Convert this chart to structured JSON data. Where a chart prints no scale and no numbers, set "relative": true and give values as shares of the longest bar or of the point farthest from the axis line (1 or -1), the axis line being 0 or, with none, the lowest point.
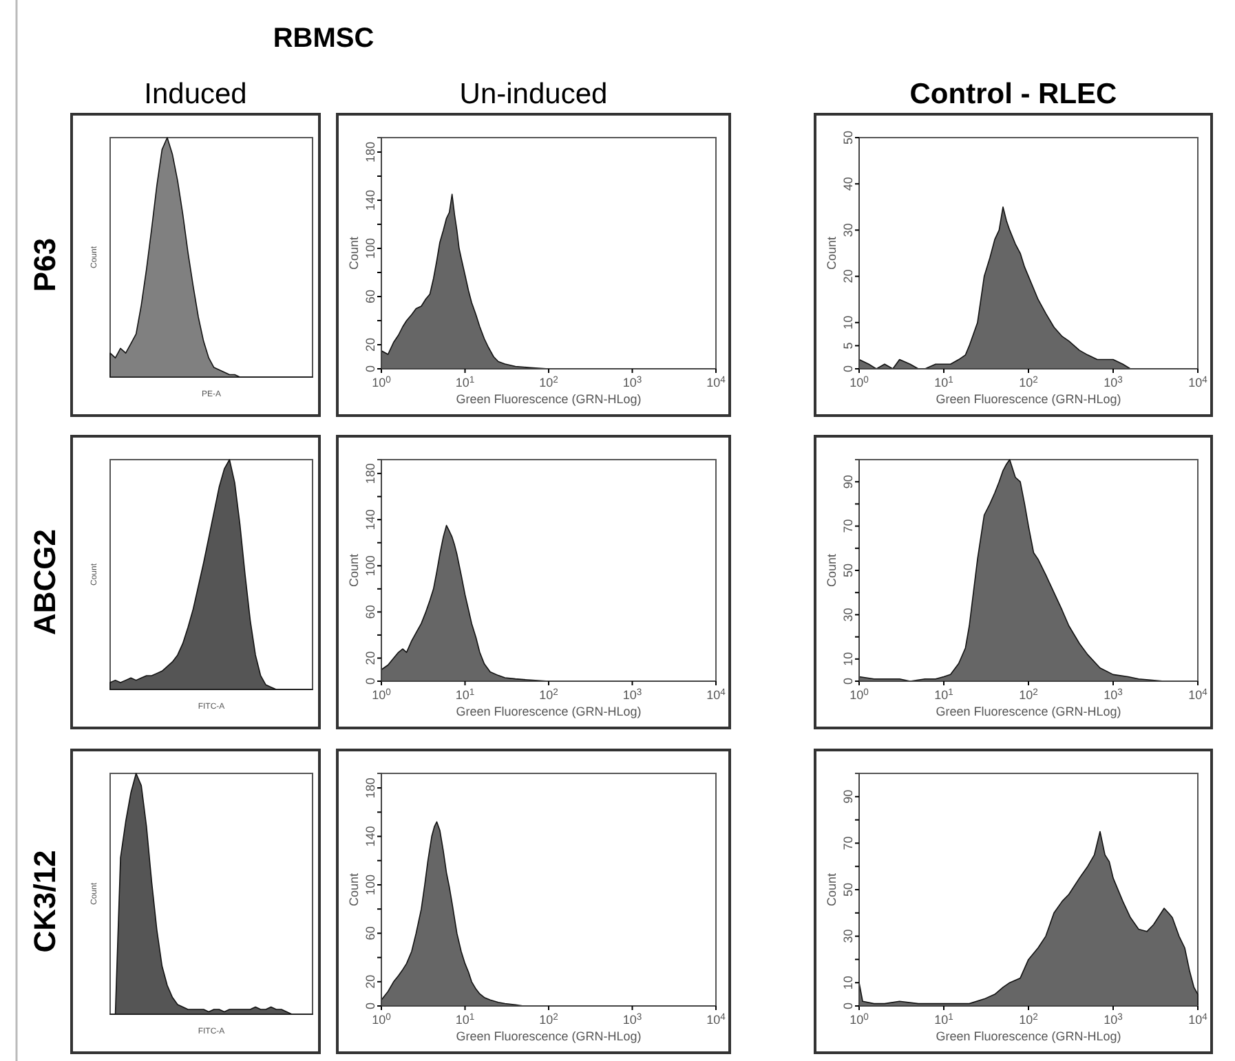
{
  "chart_data": [
    {
      "type": "area",
      "title": "Induced",
      "annotations": [
        "P63",
        "RBMSC"
      ],
      "relative": true,
      "xlabel": "PE-A",
      "ylabel": "Count",
      "color": "#808080",
      "categories": [
        null,
        null,
        null,
        null,
        null,
        null,
        null,
        null,
        null,
        null,
        null,
        null,
        null,
        null,
        null,
        null,
        null,
        null,
        null,
        null,
        null,
        null,
        null,
        null,
        null,
        null,
        null,
        null,
        null,
        null,
        null,
        null,
        null,
        null,
        null,
        null,
        null,
        null,
        null,
        null
      ],
      "values": [
        0.1,
        0.08,
        0.12,
        0.1,
        0.14,
        0.18,
        0.3,
        0.45,
        0.62,
        0.8,
        0.95,
        1,
        0.93,
        0.82,
        0.68,
        0.52,
        0.38,
        0.25,
        0.15,
        0.08,
        0.04,
        0.03,
        0.02,
        0.01,
        0.01,
        0,
        0,
        0,
        0,
        0,
        0,
        0,
        0,
        0,
        0,
        0,
        0,
        0,
        0,
        0
      ]
    },
    {
      "type": "area",
      "title": "Un-induced",
      "xlabel": "Green Fluorescence (GRN-HLog)",
      "ylabel": "Count",
      "color": "#666666",
      "log": "x",
      "xlim": [
        1,
        10000
      ],
      "xticks": [
        {
          "value": 1,
          "label": "10$^{0}$"
        },
        {
          "value": 10,
          "label": "10$^{1}$"
        },
        {
          "value": 100,
          "label": "10$^{2}$"
        },
        {
          "value": 1000,
          "label": "10$^{3}$"
        },
        {
          "value": 10000,
          "label": "10$^{4}$"
        }
      ],
      "ylim": [
        0,
        192
      ],
      "yticks": [
        0,
        20,
        {
          "value": 40,
          "label": null
        },
        60,
        {
          "value": 80,
          "label": null
        },
        100,
        {
          "value": 120,
          "label": null
        },
        140,
        {
          "value": 160,
          "label": null
        },
        180
      ],
      "x": [
        1,
        1.2,
        1.4,
        1.6,
        1.8,
        2,
        2.3,
        2.6,
        3,
        3.4,
        3.8,
        4.2,
        4.6,
        5,
        5.5,
        6,
        6.5,
        7,
        7.5,
        8,
        8.5,
        9,
        10,
        11,
        12,
        13.5,
        15,
        17,
        19,
        22,
        25,
        30,
        40,
        60,
        100,
        1000,
        10000
      ],
      "values": [
        15,
        12,
        22,
        28,
        35,
        40,
        45,
        50,
        52,
        58,
        62,
        75,
        90,
        105,
        115,
        125,
        130,
        145,
        128,
        115,
        100,
        92,
        78,
        65,
        55,
        45,
        35,
        25,
        18,
        10,
        6,
        4,
        2,
        1,
        0,
        0,
        0
      ]
    },
    {
      "type": "area",
      "title": "Control - RLEC",
      "xlabel": "Green Fluorescence (GRN-HLog)",
      "ylabel": "Count",
      "color": "#666666",
      "log": "x",
      "xlim": [
        1,
        10000
      ],
      "xticks": [
        {
          "value": 1,
          "label": "10$^{0}$"
        },
        {
          "value": 10,
          "label": "10$^{1}$"
        },
        {
          "value": 100,
          "label": "10$^{2}$"
        },
        {
          "value": 1000,
          "label": "10$^{3}$"
        },
        {
          "value": 10000,
          "label": "10$^{4}$"
        }
      ],
      "ylim": [
        0,
        50
      ],
      "yticks": [
        0,
        5,
        10,
        20,
        30,
        40,
        50
      ],
      "x": [
        1,
        1.3,
        1.6,
        2,
        2.5,
        3,
        4,
        5,
        6,
        8,
        10,
        12,
        15,
        18,
        20,
        25,
        30,
        35,
        40,
        45,
        50,
        55,
        60,
        70,
        80,
        90,
        100,
        130,
        160,
        200,
        250,
        300,
        400,
        500,
        650,
        800,
        1000,
        1300,
        1600,
        3000,
        10000
      ],
      "values": [
        2,
        1,
        0,
        1,
        0,
        2,
        1,
        0,
        0,
        1,
        1,
        1,
        2,
        3,
        5,
        10,
        20,
        24,
        28,
        30,
        35,
        32,
        30,
        27,
        25,
        22,
        20,
        15,
        12,
        9,
        7,
        6,
        4,
        3,
        2,
        2,
        2,
        1,
        0,
        0,
        0
      ]
    },
    {
      "type": "area",
      "annotations": [
        "ABCG2"
      ],
      "relative": true,
      "xlabel": "FITC-A",
      "ylabel": "Count",
      "color": "#555555",
      "categories": [
        null,
        null,
        null,
        null,
        null,
        null,
        null,
        null,
        null,
        null,
        null,
        null,
        null,
        null,
        null,
        null,
        null,
        null,
        null,
        null,
        null,
        null,
        null,
        null,
        null,
        null,
        null,
        null,
        null,
        null,
        null,
        null,
        null,
        null,
        null,
        null,
        null,
        null,
        null,
        null
      ],
      "values": [
        0.03,
        0.04,
        0.03,
        0.04,
        0.05,
        0.04,
        0.05,
        0.06,
        0.06,
        0.07,
        0.08,
        0.1,
        0.12,
        0.15,
        0.2,
        0.27,
        0.35,
        0.45,
        0.55,
        0.66,
        0.77,
        0.88,
        0.96,
        1,
        0.9,
        0.72,
        0.5,
        0.3,
        0.15,
        0.06,
        0.02,
        0.01,
        0,
        0,
        0,
        0,
        0,
        0,
        0,
        0
      ]
    },
    {
      "type": "area",
      "xlabel": "Green Fluorescence (GRN-HLog)",
      "ylabel": "Count",
      "color": "#666666",
      "log": "x",
      "xlim": [
        1,
        10000
      ],
      "xticks": [
        {
          "value": 1,
          "label": "10$^{0}$"
        },
        {
          "value": 10,
          "label": "10$^{1}$"
        },
        {
          "value": 100,
          "label": "10$^{2}$"
        },
        {
          "value": 1000,
          "label": "10$^{3}$"
        },
        {
          "value": 10000,
          "label": "10$^{4}$"
        }
      ],
      "ylim": [
        0,
        192
      ],
      "yticks": [
        0,
        20,
        {
          "value": 40,
          "label": null
        },
        60,
        {
          "value": 80,
          "label": null
        },
        100,
        {
          "value": 120,
          "label": null
        },
        140,
        {
          "value": 160,
          "label": null
        },
        180
      ],
      "x": [
        1,
        1.2,
        1.4,
        1.6,
        1.8,
        2,
        2.3,
        2.6,
        3,
        3.4,
        3.8,
        4.2,
        4.6,
        5,
        5.5,
        6,
        6.5,
        7,
        7.5,
        8,
        9,
        10,
        11,
        12,
        13.5,
        15,
        17,
        20,
        25,
        30,
        40,
        60,
        100,
        1000,
        10000
      ],
      "values": [
        10,
        14,
        20,
        25,
        28,
        25,
        35,
        42,
        50,
        60,
        70,
        80,
        95,
        110,
        125,
        135,
        130,
        125,
        118,
        110,
        92,
        75,
        62,
        50,
        38,
        25,
        15,
        8,
        5,
        3,
        2,
        1,
        0,
        0,
        0
      ]
    },
    {
      "type": "area",
      "xlabel": "Green Fluorescence (GRN-HLog)",
      "ylabel": "Count",
      "color": "#666666",
      "log": "x",
      "xlim": [
        1,
        10000
      ],
      "xticks": [
        {
          "value": 1,
          "label": "10$^{0}$"
        },
        {
          "value": 10,
          "label": "10$^{1}$"
        },
        {
          "value": 100,
          "label": "10$^{2}$"
        },
        {
          "value": 1000,
          "label": "10$^{3}$"
        },
        {
          "value": 10000,
          "label": "10$^{4}$"
        }
      ],
      "ylim": [
        0,
        100
      ],
      "yticks": [
        0,
        10,
        {
          "value": 20,
          "label": null
        },
        30,
        {
          "value": 40,
          "label": null
        },
        50,
        {
          "value": 60,
          "label": null
        },
        70,
        {
          "value": 80,
          "label": null
        },
        90
      ],
      "x": [
        1,
        1.5,
        2,
        3,
        4,
        6,
        8,
        10,
        12,
        15,
        18,
        20,
        25,
        30,
        35,
        40,
        45,
        50,
        55,
        60,
        70,
        80,
        90,
        100,
        115,
        130,
        160,
        200,
        250,
        300,
        400,
        500,
        700,
        1000,
        1500,
        2000,
        4000,
        10000
      ],
      "values": [
        2,
        1,
        1,
        1,
        0,
        1,
        1,
        2,
        3,
        8,
        15,
        25,
        55,
        75,
        80,
        85,
        90,
        95,
        98,
        100,
        92,
        90,
        80,
        70,
        58,
        55,
        48,
        40,
        32,
        25,
        17,
        12,
        6,
        3,
        2,
        1,
        0,
        0
      ]
    },
    {
      "type": "area",
      "annotations": [
        "CK3/12"
      ],
      "relative": true,
      "xlabel": "FITC-A",
      "ylabel": "Count",
      "color": "#555555",
      "categories": [
        null,
        null,
        null,
        null,
        null,
        null,
        null,
        null,
        null,
        null,
        null,
        null,
        null,
        null,
        null,
        null,
        null,
        null,
        null,
        null,
        null,
        null,
        null,
        null,
        null,
        null,
        null,
        null,
        null,
        null,
        null,
        null,
        null,
        null,
        null,
        null,
        null,
        null,
        null,
        null
      ],
      "values": [
        0,
        0,
        0.65,
        0.8,
        0.92,
        1,
        0.95,
        0.78,
        0.55,
        0.35,
        0.2,
        0.12,
        0.07,
        0.04,
        0.03,
        0.02,
        0.02,
        0.02,
        0.02,
        0.01,
        0.02,
        0.02,
        0.01,
        0.02,
        0.02,
        0.02,
        0.02,
        0.02,
        0.03,
        0.02,
        0.02,
        0.03,
        0.02,
        0.02,
        0.01,
        0,
        0,
        0,
        0,
        0
      ]
    },
    {
      "type": "area",
      "xlabel": "Green Fluorescence (GRN-HLog)",
      "ylabel": "Count",
      "color": "#666666",
      "log": "x",
      "xlim": [
        1,
        10000
      ],
      "xticks": [
        {
          "value": 1,
          "label": "10$^{0}$"
        },
        {
          "value": 10,
          "label": "10$^{1}$"
        },
        {
          "value": 100,
          "label": "10$^{2}$"
        },
        {
          "value": 1000,
          "label": "10$^{3}$"
        },
        {
          "value": 10000,
          "label": "10$^{4}$"
        }
      ],
      "ylim": [
        0,
        192
      ],
      "yticks": [
        0,
        20,
        {
          "value": 40,
          "label": null
        },
        60,
        {
          "value": 80,
          "label": null
        },
        100,
        {
          "value": 120,
          "label": null
        },
        140,
        {
          "value": 160,
          "label": null
        },
        180
      ],
      "x": [
        1,
        1.2,
        1.4,
        1.6,
        1.8,
        2,
        2.3,
        2.6,
        3,
        3.3,
        3.6,
        4,
        4.3,
        4.6,
        5,
        5.5,
        6,
        6.5,
        7,
        8,
        9,
        10,
        11,
        12,
        13.5,
        15,
        17,
        20,
        25,
        30,
        40,
        50,
        100,
        1000,
        10000
      ],
      "values": [
        5,
        12,
        20,
        25,
        30,
        35,
        45,
        60,
        80,
        100,
        120,
        140,
        148,
        152,
        145,
        128,
        110,
        98,
        85,
        60,
        45,
        35,
        28,
        20,
        14,
        10,
        7,
        5,
        3,
        2,
        1,
        0,
        0,
        0,
        0
      ]
    },
    {
      "type": "area",
      "xlabel": "Green Fluorescence (GRN-HLog)",
      "ylabel": "Count",
      "color": "#666666",
      "log": "x",
      "xlim": [
        1,
        10000
      ],
      "xticks": [
        {
          "value": 1,
          "label": "10$^{0}$"
        },
        {
          "value": 10,
          "label": "10$^{1}$"
        },
        {
          "value": 100,
          "label": "10$^{2}$"
        },
        {
          "value": 1000,
          "label": "10$^{3}$"
        },
        {
          "value": 10000,
          "label": "10$^{4}$"
        }
      ],
      "ylim": [
        0,
        100
      ],
      "yticks": [
        0,
        10,
        {
          "value": 20,
          "label": null
        },
        30,
        {
          "value": 40,
          "label": null
        },
        50,
        {
          "value": 60,
          "label": null
        },
        70,
        {
          "value": 80,
          "label": null
        },
        90
      ],
      "x": [
        1,
        1.1,
        1.5,
        2,
        3,
        5,
        8,
        12,
        20,
        30,
        40,
        50,
        60,
        80,
        100,
        130,
        160,
        200,
        250,
        300,
        400,
        500,
        600,
        700,
        800,
        900,
        1000,
        1300,
        1600,
        2000,
        2500,
        3000,
        4000,
        4500,
        5000,
        6000,
        7000,
        8000,
        9000,
        10000
      ],
      "values": [
        10,
        2,
        1,
        1,
        2,
        1,
        1,
        1,
        1,
        3,
        5,
        8,
        10,
        12,
        20,
        25,
        30,
        40,
        45,
        48,
        55,
        60,
        65,
        75,
        65,
        62,
        55,
        45,
        38,
        33,
        32,
        35,
        42,
        40,
        38,
        30,
        25,
        15,
        8,
        5
      ]
    }
  ]
}
